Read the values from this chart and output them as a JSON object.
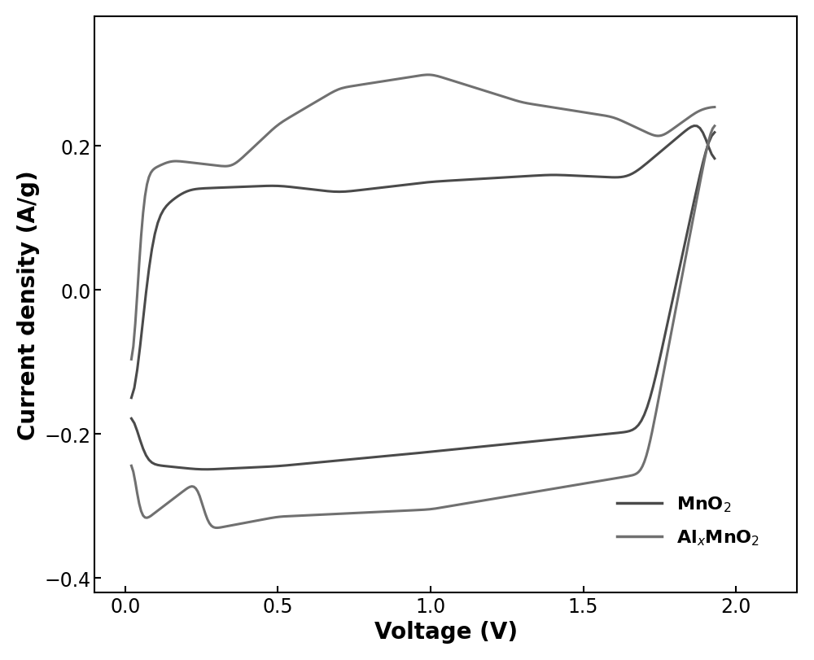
{
  "title": "",
  "xlabel": "Voltage (V)",
  "ylabel": "Current density (A/g)",
  "xlim": [
    -0.1,
    2.2
  ],
  "ylim": [
    -0.42,
    0.38
  ],
  "xticks": [
    0.0,
    0.5,
    1.0,
    1.5,
    2.0
  ],
  "yticks": [
    -0.4,
    -0.2,
    0.0,
    0.2
  ],
  "mno2_color": "#4a4a4a",
  "almno2_color": "#707070",
  "background_color": "#ffffff",
  "legend_labels": [
    "MnO$_2$",
    "Al$_x$MnO$_2$"
  ],
  "xlabel_fontsize": 20,
  "ylabel_fontsize": 20,
  "tick_fontsize": 17,
  "legend_fontsize": 16,
  "linewidth_mno2": 2.2,
  "linewidth_almno2": 2.2
}
